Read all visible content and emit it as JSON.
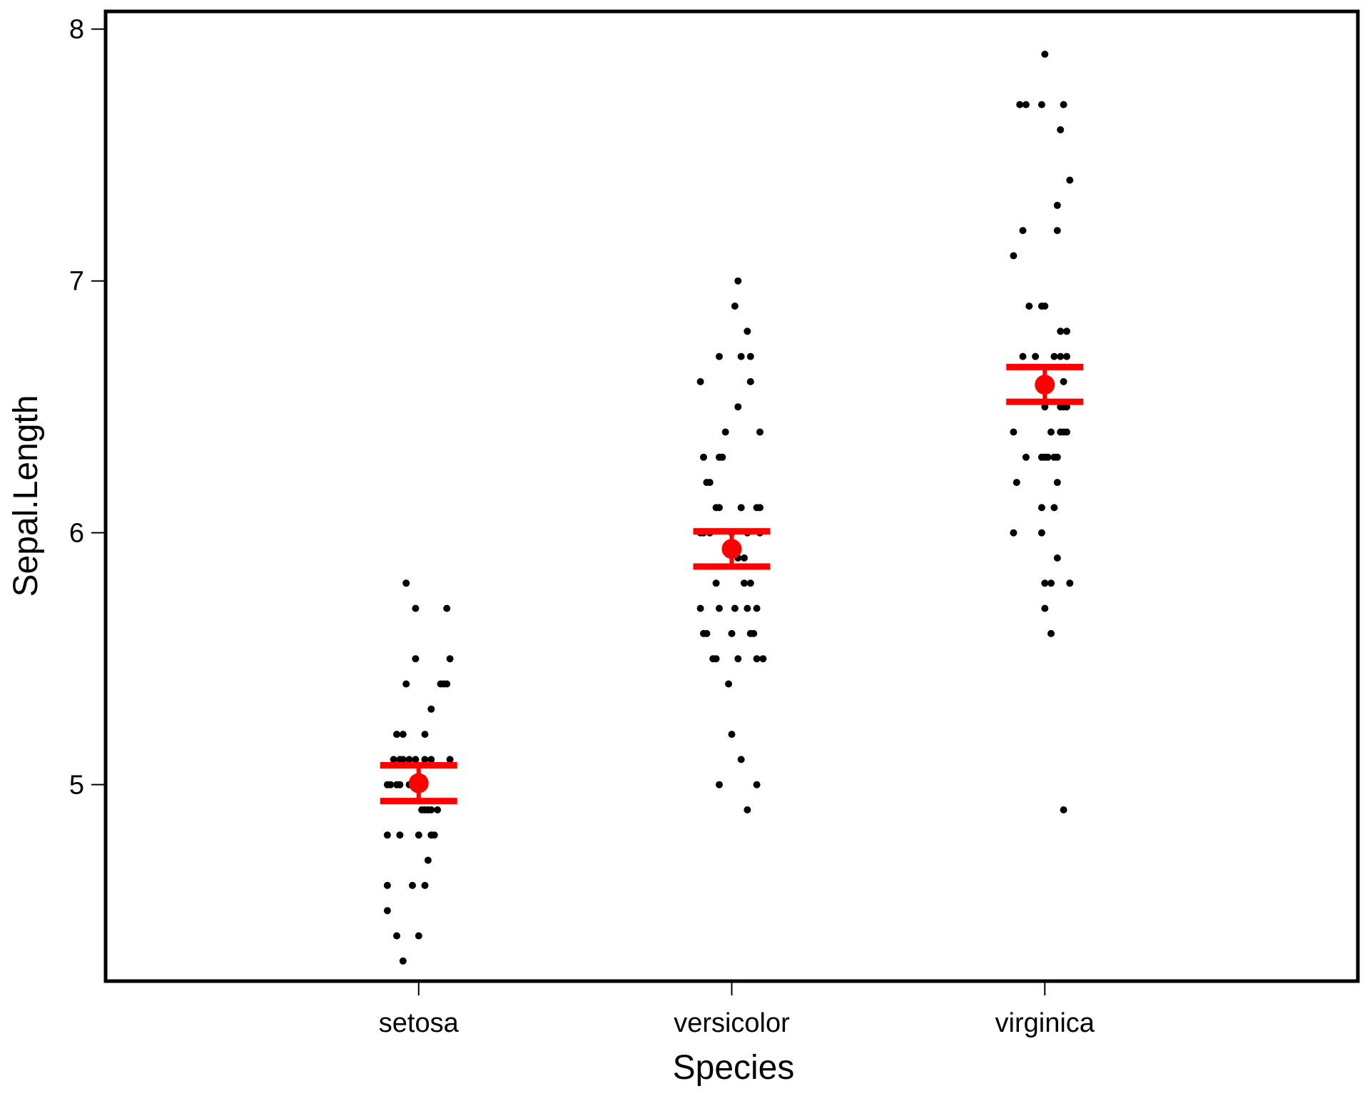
{
  "chart_data": {
    "type": "scatter",
    "xlabel": "Species",
    "ylabel": "Sepal.Length",
    "categories": [
      "setosa",
      "versicolor",
      "virginica"
    ],
    "ylim": [
      4.22,
      8.07
    ],
    "yticks": [
      5,
      6,
      7,
      8
    ],
    "grid": false,
    "legend": "none",
    "colors": {
      "points": "#000000",
      "summary": "#ff0000",
      "frame": "#000000"
    },
    "points": [
      {
        "category": "setosa",
        "y": 4.3,
        "jitter": -0.05
      },
      {
        "category": "setosa",
        "y": 4.4,
        "jitter": -0.07
      },
      {
        "category": "setosa",
        "y": 4.4,
        "jitter": 0.0
      },
      {
        "category": "setosa",
        "y": 4.5,
        "jitter": -0.1
      },
      {
        "category": "setosa",
        "y": 4.6,
        "jitter": -0.1
      },
      {
        "category": "setosa",
        "y": 4.6,
        "jitter": -0.02
      },
      {
        "category": "setosa",
        "y": 4.6,
        "jitter": 0.02
      },
      {
        "category": "setosa",
        "y": 4.7,
        "jitter": 0.03
      },
      {
        "category": "setosa",
        "y": 4.8,
        "jitter": -0.1
      },
      {
        "category": "setosa",
        "y": 4.8,
        "jitter": -0.06
      },
      {
        "category": "setosa",
        "y": 4.8,
        "jitter": 0.0
      },
      {
        "category": "setosa",
        "y": 4.8,
        "jitter": 0.04
      },
      {
        "category": "setosa",
        "y": 4.8,
        "jitter": 0.05
      },
      {
        "category": "setosa",
        "y": 4.9,
        "jitter": 0.01
      },
      {
        "category": "setosa",
        "y": 4.9,
        "jitter": 0.02
      },
      {
        "category": "setosa",
        "y": 4.9,
        "jitter": 0.03
      },
      {
        "category": "setosa",
        "y": 4.9,
        "jitter": 0.04
      },
      {
        "category": "setosa",
        "y": 4.9,
        "jitter": 0.06
      },
      {
        "category": "setosa",
        "y": 5.0,
        "jitter": -0.1
      },
      {
        "category": "setosa",
        "y": 5.0,
        "jitter": -0.09
      },
      {
        "category": "setosa",
        "y": 5.0,
        "jitter": -0.07
      },
      {
        "category": "setosa",
        "y": 5.0,
        "jitter": -0.06
      },
      {
        "category": "setosa",
        "y": 5.0,
        "jitter": -0.03
      },
      {
        "category": "setosa",
        "y": 5.0,
        "jitter": -0.01
      },
      {
        "category": "setosa",
        "y": 5.0,
        "jitter": 0.0
      },
      {
        "category": "setosa",
        "y": 5.0,
        "jitter": 0.02
      },
      {
        "category": "setosa",
        "y": 5.1,
        "jitter": -0.08
      },
      {
        "category": "setosa",
        "y": 5.1,
        "jitter": -0.06
      },
      {
        "category": "setosa",
        "y": 5.1,
        "jitter": -0.05
      },
      {
        "category": "setosa",
        "y": 5.1,
        "jitter": -0.03
      },
      {
        "category": "setosa",
        "y": 5.1,
        "jitter": -0.01
      },
      {
        "category": "setosa",
        "y": 5.1,
        "jitter": 0.02
      },
      {
        "category": "setosa",
        "y": 5.1,
        "jitter": 0.04
      },
      {
        "category": "setosa",
        "y": 5.1,
        "jitter": 0.1
      },
      {
        "category": "setosa",
        "y": 5.2,
        "jitter": -0.07
      },
      {
        "category": "setosa",
        "y": 5.2,
        "jitter": -0.05
      },
      {
        "category": "setosa",
        "y": 5.2,
        "jitter": 0.02
      },
      {
        "category": "setosa",
        "y": 5.3,
        "jitter": 0.04
      },
      {
        "category": "setosa",
        "y": 5.4,
        "jitter": -0.04
      },
      {
        "category": "setosa",
        "y": 5.4,
        "jitter": 0.07
      },
      {
        "category": "setosa",
        "y": 5.4,
        "jitter": 0.08
      },
      {
        "category": "setosa",
        "y": 5.4,
        "jitter": 0.09
      },
      {
        "category": "setosa",
        "y": 5.5,
        "jitter": -0.01
      },
      {
        "category": "setosa",
        "y": 5.5,
        "jitter": 0.1
      },
      {
        "category": "setosa",
        "y": 5.7,
        "jitter": -0.01
      },
      {
        "category": "setosa",
        "y": 5.7,
        "jitter": 0.09
      },
      {
        "category": "setosa",
        "y": 5.8,
        "jitter": -0.04
      },
      {
        "category": "versicolor",
        "y": 4.9,
        "jitter": 0.05
      },
      {
        "category": "versicolor",
        "y": 5.0,
        "jitter": -0.04
      },
      {
        "category": "versicolor",
        "y": 5.0,
        "jitter": 0.08
      },
      {
        "category": "versicolor",
        "y": 5.1,
        "jitter": 0.03
      },
      {
        "category": "versicolor",
        "y": 5.2,
        "jitter": 0.0
      },
      {
        "category": "versicolor",
        "y": 5.4,
        "jitter": -0.01
      },
      {
        "category": "versicolor",
        "y": 5.5,
        "jitter": -0.06
      },
      {
        "category": "versicolor",
        "y": 5.5,
        "jitter": -0.05
      },
      {
        "category": "versicolor",
        "y": 5.5,
        "jitter": 0.02
      },
      {
        "category": "versicolor",
        "y": 5.5,
        "jitter": 0.08
      },
      {
        "category": "versicolor",
        "y": 5.5,
        "jitter": 0.1
      },
      {
        "category": "versicolor",
        "y": 5.6,
        "jitter": -0.09
      },
      {
        "category": "versicolor",
        "y": 5.6,
        "jitter": -0.08
      },
      {
        "category": "versicolor",
        "y": 5.6,
        "jitter": 0.0
      },
      {
        "category": "versicolor",
        "y": 5.6,
        "jitter": 0.06
      },
      {
        "category": "versicolor",
        "y": 5.6,
        "jitter": 0.07
      },
      {
        "category": "versicolor",
        "y": 5.7,
        "jitter": -0.1
      },
      {
        "category": "versicolor",
        "y": 5.7,
        "jitter": -0.04
      },
      {
        "category": "versicolor",
        "y": 5.7,
        "jitter": 0.01
      },
      {
        "category": "versicolor",
        "y": 5.7,
        "jitter": 0.05
      },
      {
        "category": "versicolor",
        "y": 5.7,
        "jitter": 0.08
      },
      {
        "category": "versicolor",
        "y": 5.8,
        "jitter": -0.05
      },
      {
        "category": "versicolor",
        "y": 5.8,
        "jitter": 0.04
      },
      {
        "category": "versicolor",
        "y": 5.8,
        "jitter": 0.06
      },
      {
        "category": "versicolor",
        "y": 5.9,
        "jitter": 0.02
      },
      {
        "category": "versicolor",
        "y": 5.9,
        "jitter": 0.04
      },
      {
        "category": "versicolor",
        "y": 6.0,
        "jitter": -0.1
      },
      {
        "category": "versicolor",
        "y": 6.0,
        "jitter": -0.09
      },
      {
        "category": "versicolor",
        "y": 6.0,
        "jitter": -0.07
      },
      {
        "category": "versicolor",
        "y": 6.0,
        "jitter": 0.0
      },
      {
        "category": "versicolor",
        "y": 6.0,
        "jitter": 0.05
      },
      {
        "category": "versicolor",
        "y": 6.0,
        "jitter": 0.09
      },
      {
        "category": "versicolor",
        "y": 6.1,
        "jitter": -0.05
      },
      {
        "category": "versicolor",
        "y": 6.1,
        "jitter": -0.04
      },
      {
        "category": "versicolor",
        "y": 6.1,
        "jitter": 0.03
      },
      {
        "category": "versicolor",
        "y": 6.1,
        "jitter": 0.08
      },
      {
        "category": "versicolor",
        "y": 6.1,
        "jitter": 0.09
      },
      {
        "category": "versicolor",
        "y": 6.2,
        "jitter": -0.08
      },
      {
        "category": "versicolor",
        "y": 6.2,
        "jitter": -0.07
      },
      {
        "category": "versicolor",
        "y": 6.3,
        "jitter": -0.09
      },
      {
        "category": "versicolor",
        "y": 6.3,
        "jitter": -0.04
      },
      {
        "category": "versicolor",
        "y": 6.3,
        "jitter": -0.03
      },
      {
        "category": "versicolor",
        "y": 6.4,
        "jitter": -0.02
      },
      {
        "category": "versicolor",
        "y": 6.4,
        "jitter": 0.09
      },
      {
        "category": "versicolor",
        "y": 6.5,
        "jitter": 0.02
      },
      {
        "category": "versicolor",
        "y": 6.6,
        "jitter": -0.1
      },
      {
        "category": "versicolor",
        "y": 6.6,
        "jitter": 0.06
      },
      {
        "category": "versicolor",
        "y": 6.7,
        "jitter": -0.04
      },
      {
        "category": "versicolor",
        "y": 6.7,
        "jitter": 0.03
      },
      {
        "category": "versicolor",
        "y": 6.7,
        "jitter": 0.06
      },
      {
        "category": "versicolor",
        "y": 6.8,
        "jitter": 0.05
      },
      {
        "category": "versicolor",
        "y": 6.9,
        "jitter": 0.01
      },
      {
        "category": "versicolor",
        "y": 7.0,
        "jitter": 0.02
      },
      {
        "category": "virginica",
        "y": 4.9,
        "jitter": 0.06
      },
      {
        "category": "virginica",
        "y": 5.6,
        "jitter": 0.02
      },
      {
        "category": "virginica",
        "y": 5.7,
        "jitter": 0.0
      },
      {
        "category": "virginica",
        "y": 5.8,
        "jitter": 0.0
      },
      {
        "category": "virginica",
        "y": 5.8,
        "jitter": 0.02
      },
      {
        "category": "virginica",
        "y": 5.8,
        "jitter": 0.08
      },
      {
        "category": "virginica",
        "y": 5.9,
        "jitter": 0.04
      },
      {
        "category": "virginica",
        "y": 6.0,
        "jitter": -0.1
      },
      {
        "category": "virginica",
        "y": 6.0,
        "jitter": -0.01
      },
      {
        "category": "virginica",
        "y": 6.1,
        "jitter": -0.01
      },
      {
        "category": "virginica",
        "y": 6.1,
        "jitter": 0.03
      },
      {
        "category": "virginica",
        "y": 6.2,
        "jitter": -0.09
      },
      {
        "category": "virginica",
        "y": 6.2,
        "jitter": 0.04
      },
      {
        "category": "virginica",
        "y": 6.3,
        "jitter": -0.06
      },
      {
        "category": "virginica",
        "y": 6.3,
        "jitter": -0.01
      },
      {
        "category": "virginica",
        "y": 6.3,
        "jitter": 0.0
      },
      {
        "category": "virginica",
        "y": 6.3,
        "jitter": 0.01
      },
      {
        "category": "virginica",
        "y": 6.3,
        "jitter": 0.03
      },
      {
        "category": "virginica",
        "y": 6.3,
        "jitter": 0.04
      },
      {
        "category": "virginica",
        "y": 6.4,
        "jitter": -0.1
      },
      {
        "category": "virginica",
        "y": 6.4,
        "jitter": 0.02
      },
      {
        "category": "virginica",
        "y": 6.4,
        "jitter": 0.05
      },
      {
        "category": "virginica",
        "y": 6.4,
        "jitter": 0.06
      },
      {
        "category": "virginica",
        "y": 6.4,
        "jitter": 0.07
      },
      {
        "category": "virginica",
        "y": 6.5,
        "jitter": 0.0
      },
      {
        "category": "virginica",
        "y": 6.5,
        "jitter": 0.05
      },
      {
        "category": "virginica",
        "y": 6.5,
        "jitter": 0.06
      },
      {
        "category": "virginica",
        "y": 6.5,
        "jitter": 0.07
      },
      {
        "category": "virginica",
        "y": 6.6,
        "jitter": 0.06
      },
      {
        "category": "virginica",
        "y": 6.7,
        "jitter": -0.07
      },
      {
        "category": "virginica",
        "y": 6.7,
        "jitter": -0.03
      },
      {
        "category": "virginica",
        "y": 6.7,
        "jitter": 0.03
      },
      {
        "category": "virginica",
        "y": 6.7,
        "jitter": 0.05
      },
      {
        "category": "virginica",
        "y": 6.7,
        "jitter": 0.07
      },
      {
        "category": "virginica",
        "y": 6.8,
        "jitter": 0.05
      },
      {
        "category": "virginica",
        "y": 6.8,
        "jitter": 0.07
      },
      {
        "category": "virginica",
        "y": 6.9,
        "jitter": -0.05
      },
      {
        "category": "virginica",
        "y": 6.9,
        "jitter": -0.01
      },
      {
        "category": "virginica",
        "y": 6.9,
        "jitter": 0.0
      },
      {
        "category": "virginica",
        "y": 7.1,
        "jitter": -0.1
      },
      {
        "category": "virginica",
        "y": 7.2,
        "jitter": -0.07
      },
      {
        "category": "virginica",
        "y": 7.2,
        "jitter": 0.04
      },
      {
        "category": "virginica",
        "y": 7.3,
        "jitter": 0.04
      },
      {
        "category": "virginica",
        "y": 7.4,
        "jitter": 0.08
      },
      {
        "category": "virginica",
        "y": 7.6,
        "jitter": 0.05
      },
      {
        "category": "virginica",
        "y": 7.7,
        "jitter": -0.08
      },
      {
        "category": "virginica",
        "y": 7.7,
        "jitter": -0.06
      },
      {
        "category": "virginica",
        "y": 7.7,
        "jitter": -0.01
      },
      {
        "category": "virginica",
        "y": 7.7,
        "jitter": 0.06
      },
      {
        "category": "virginica",
        "y": 7.9,
        "jitter": 0.0
      }
    ],
    "summary": [
      {
        "category": "setosa",
        "mean": 5.006,
        "lower": 4.935,
        "upper": 5.077
      },
      {
        "category": "versicolor",
        "mean": 5.936,
        "lower": 5.866,
        "upper": 6.006
      },
      {
        "category": "virginica",
        "mean": 6.588,
        "lower": 6.52,
        "upper": 6.658
      }
    ]
  }
}
